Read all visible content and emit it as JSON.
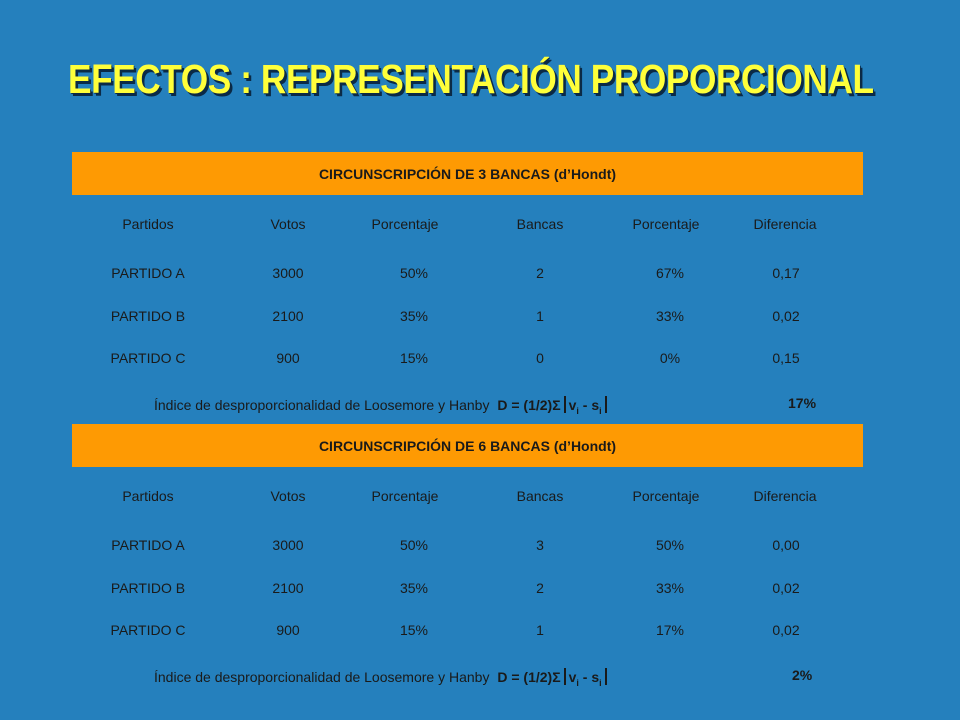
{
  "title": "EFECTOS : REPRESENTACIÓN PROPORCIONAL",
  "sections": [
    {
      "header": "CIRCUNSCRIPCIÓN DE 3 BANCAS (d’Hondt)",
      "columns": [
        "Partidos",
        "Votos",
        "Porcentaje",
        "Bancas",
        "Porcentaje",
        "Diferencia"
      ],
      "rows": [
        [
          "PARTIDO A",
          "3000",
          "50%",
          "2",
          "67%",
          "0,17"
        ],
        [
          "PARTIDO B",
          "2100",
          "35%",
          "1",
          "33%",
          "0,02"
        ],
        [
          "PARTIDO C",
          "900",
          "15%",
          "0",
          "0%",
          "0,15"
        ]
      ],
      "index_label": "Índice de desproporcionalidad de Loosemore y Hanby",
      "formula_prefix": "D = (1/2)Σ",
      "formula_v": "v",
      "formula_i1": "i",
      "formula_mid": " - s",
      "formula_i2": "i",
      "result": "17%"
    },
    {
      "header": "CIRCUNSCRIPCIÓN DE 6 BANCAS (d’Hondt)",
      "columns": [
        "Partidos",
        "Votos",
        "Porcentaje",
        "Bancas",
        "Porcentaje",
        "Diferencia"
      ],
      "rows": [
        [
          "PARTIDO A",
          "3000",
          "50%",
          "3",
          "50%",
          "0,00"
        ],
        [
          "PARTIDO B",
          "2100",
          "35%",
          "2",
          "33%",
          "0,02"
        ],
        [
          "PARTIDO C",
          "900",
          "15%",
          "1",
          "17%",
          "0,02"
        ]
      ],
      "index_label": "Índice de desproporcionalidad de Loosemore y Hanby",
      "formula_prefix": "D = (1/2)Σ",
      "formula_v": "v",
      "formula_i1": "i",
      "formula_mid": " - s",
      "formula_i2": "i",
      "result": "2%"
    }
  ],
  "colors": {
    "background": "#2580bd",
    "band": "#fe9a03",
    "title": "#ffff3a"
  }
}
